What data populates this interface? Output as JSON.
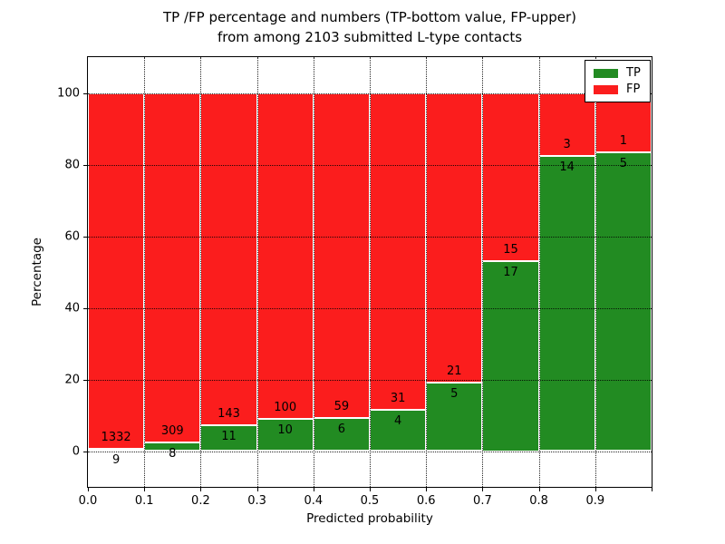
{
  "title": {
    "line1": "TP /FP percentage and numbers (TP-bottom value, FP-upper)",
    "line2": "from among 2103 submitted L-type contacts"
  },
  "axes": {
    "xlabel": "Predicted probability",
    "ylabel": "Percentage",
    "x_ticks": [
      {
        "label": "0.0",
        "value": 0.0
      },
      {
        "label": "0.1",
        "value": 0.1
      },
      {
        "label": "0.2",
        "value": 0.2
      },
      {
        "label": "0.3",
        "value": 0.3
      },
      {
        "label": "0.4",
        "value": 0.4
      },
      {
        "label": "0.5",
        "value": 0.5
      },
      {
        "label": "0.6",
        "value": 0.6
      },
      {
        "label": "0.7",
        "value": 0.7
      },
      {
        "label": "0.8",
        "value": 0.8
      },
      {
        "label": "0.9",
        "value": 0.9
      },
      {
        "label": "",
        "value": 1.0
      }
    ],
    "y_ticks": [
      {
        "label": "0",
        "value": 0
      },
      {
        "label": "20",
        "value": 20
      },
      {
        "label": "40",
        "value": 40
      },
      {
        "label": "60",
        "value": 60
      },
      {
        "label": "80",
        "value": 80
      },
      {
        "label": "100",
        "value": 100
      }
    ]
  },
  "legend": {
    "items": [
      {
        "label": "TP",
        "color": "#228b22"
      },
      {
        "label": "FP",
        "color": "#fb1d1d"
      }
    ]
  },
  "chart_data": {
    "type": "bar",
    "stacked": true,
    "normalized": "each bin stacked to 100%; numeric labels show raw counts (TP bottom, FP upper)",
    "title": "TP /FP percentage and numbers (TP-bottom value, FP-upper) from among 2103 submitted L-type contacts",
    "xlabel": "Predicted probability",
    "ylabel": "Percentage",
    "xlim": [
      0.0,
      1.0
    ],
    "ylim": [
      -10,
      110
    ],
    "grid": true,
    "legend_position": "upper right",
    "total_submitted_contacts": 2103,
    "categories": [
      "0.0-0.1",
      "0.1-0.2",
      "0.2-0.3",
      "0.3-0.4",
      "0.4-0.5",
      "0.5-0.6",
      "0.6-0.7",
      "0.7-0.8",
      "0.8-0.9",
      "0.9-1.0"
    ],
    "bins": [
      {
        "range": [
          0.0,
          0.1
        ],
        "tp": 9,
        "fp": 1332,
        "tp_percent": 0.67,
        "fp_percent": 99.33
      },
      {
        "range": [
          0.1,
          0.2
        ],
        "tp": 8,
        "fp": 309,
        "tp_percent": 2.52,
        "fp_percent": 97.48
      },
      {
        "range": [
          0.2,
          0.3
        ],
        "tp": 11,
        "fp": 143,
        "tp_percent": 7.14,
        "fp_percent": 92.86
      },
      {
        "range": [
          0.3,
          0.4
        ],
        "tp": 10,
        "fp": 100,
        "tp_percent": 9.09,
        "fp_percent": 90.91
      },
      {
        "range": [
          0.4,
          0.5
        ],
        "tp": 6,
        "fp": 59,
        "tp_percent": 9.23,
        "fp_percent": 90.77
      },
      {
        "range": [
          0.5,
          0.6
        ],
        "tp": 4,
        "fp": 31,
        "tp_percent": 11.43,
        "fp_percent": 88.57
      },
      {
        "range": [
          0.6,
          0.7
        ],
        "tp": 5,
        "fp": 21,
        "tp_percent": 19.23,
        "fp_percent": 80.77
      },
      {
        "range": [
          0.7,
          0.8
        ],
        "tp": 17,
        "fp": 15,
        "tp_percent": 53.13,
        "fp_percent": 46.87
      },
      {
        "range": [
          0.8,
          0.9
        ],
        "tp": 14,
        "fp": 3,
        "tp_percent": 82.35,
        "fp_percent": 17.65
      },
      {
        "range": [
          0.9,
          1.0
        ],
        "tp": 5,
        "fp": 1,
        "tp_percent": 83.33,
        "fp_percent": 16.67
      }
    ],
    "series": [
      {
        "name": "TP",
        "color": "#228b22",
        "counts": [
          9,
          8,
          11,
          10,
          6,
          4,
          5,
          17,
          14,
          5
        ]
      },
      {
        "name": "FP",
        "color": "#fb1d1d",
        "counts": [
          1332,
          309,
          143,
          100,
          59,
          31,
          21,
          15,
          3,
          1
        ]
      }
    ]
  }
}
